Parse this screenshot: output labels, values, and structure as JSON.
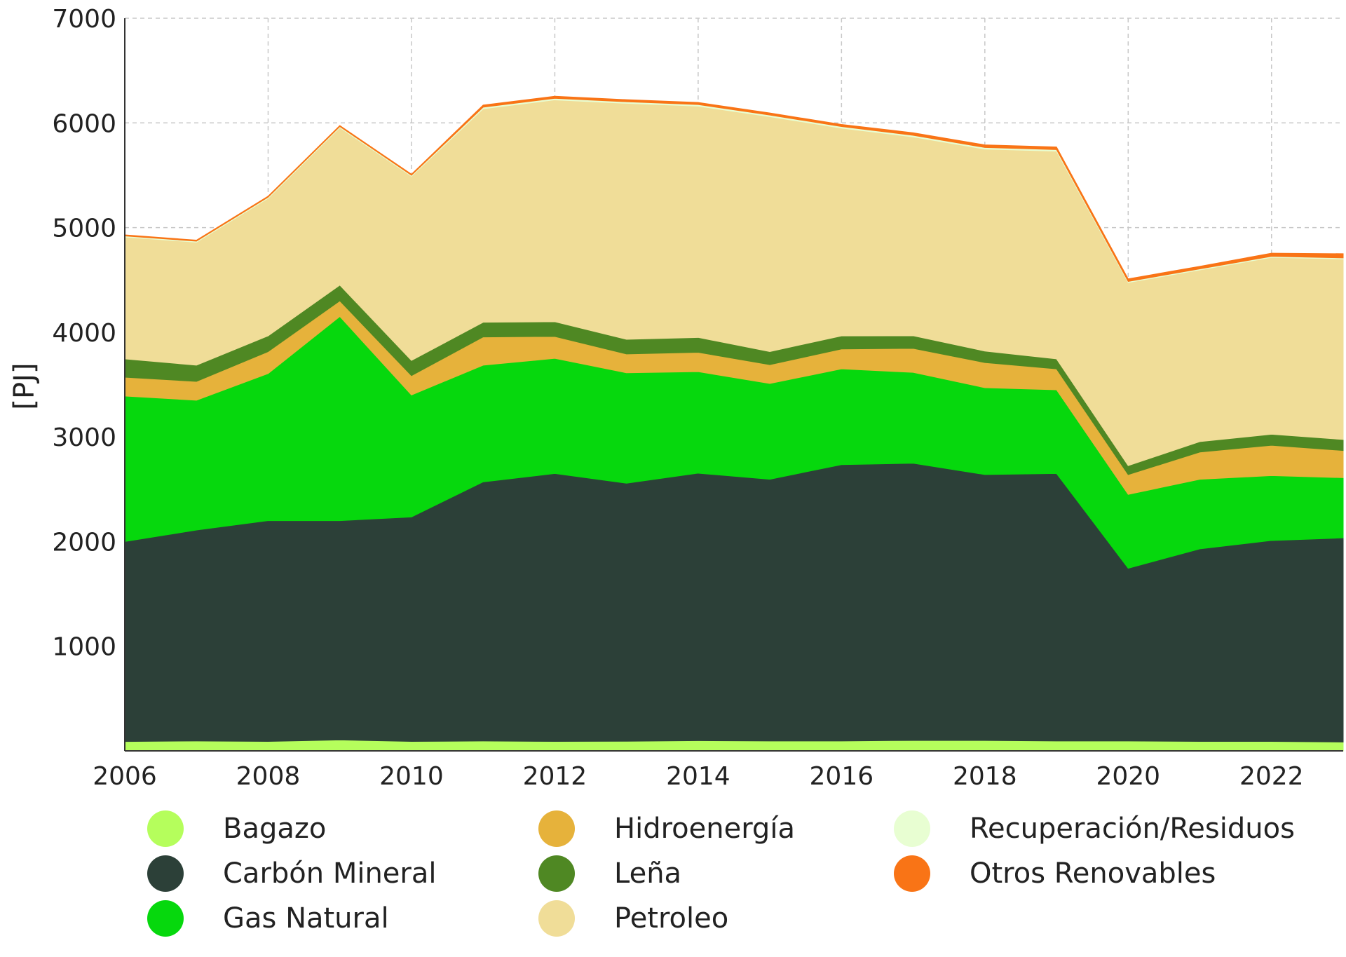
{
  "chart_data": {
    "type": "area",
    "stacked": true,
    "title": "",
    "xlabel": "",
    "ylabel": "[PJ]",
    "x": [
      2006,
      2007,
      2008,
      2009,
      2010,
      2011,
      2012,
      2013,
      2014,
      2015,
      2016,
      2017,
      2018,
      2019,
      2020,
      2021,
      2022,
      2023
    ],
    "xlim": [
      2006,
      2023
    ],
    "ylim": [
      0,
      7000
    ],
    "xticks": [
      "2006",
      "2008",
      "2010",
      "2012",
      "2014",
      "2016",
      "2018",
      "2020",
      "2022"
    ],
    "yticks": [
      "1000",
      "2000",
      "3000",
      "4000",
      "5000",
      "6000",
      "7000"
    ],
    "grid": true,
    "legend_position": "bottom",
    "series": [
      {
        "name": "Bagazo",
        "color": "#b5fe5c",
        "values": [
          90,
          95,
          90,
          105,
          90,
          95,
          90,
          92,
          98,
          95,
          95,
          100,
          100,
          95,
          95,
          90,
          90,
          85
        ]
      },
      {
        "name": "Carbón Mineral",
        "color": "#2c4038",
        "values": [
          1910,
          2015,
          2110,
          2095,
          2145,
          2475,
          2560,
          2465,
          2555,
          2500,
          2640,
          2648,
          2540,
          2555,
          1650,
          1840,
          1920,
          1950
        ]
      },
      {
        "name": "Gas Natural",
        "color": "#06d80d",
        "values": [
          1390,
          1240,
          1405,
          1950,
          1165,
          1115,
          1100,
          1055,
          970,
          915,
          915,
          868,
          830,
          800,
          705,
          665,
          620,
          575
        ]
      },
      {
        "name": "Hidroenergía",
        "color": "#e6b23b",
        "values": [
          180,
          180,
          210,
          150,
          185,
          270,
          210,
          180,
          185,
          180,
          190,
          230,
          240,
          200,
          190,
          260,
          290,
          260
        ]
      },
      {
        "name": "Leña",
        "color": "#4f8823",
        "values": [
          175,
          155,
          150,
          150,
          145,
          140,
          140,
          140,
          142,
          125,
          125,
          120,
          110,
          95,
          85,
          100,
          105,
          105
        ]
      },
      {
        "name": "Petroleo",
        "color": "#f0dd98",
        "values": [
          1165,
          1175,
          1315,
          1505,
          1760,
          2040,
          2120,
          2255,
          2210,
          2245,
          1985,
          1900,
          1930,
          1985,
          1750,
          1640,
          1690,
          1725
        ]
      },
      {
        "name": "Recuperación/Residuos",
        "color": "#e8fed2",
        "values": [
          10,
          10,
          10,
          10,
          10,
          15,
          15,
          15,
          15,
          15,
          15,
          15,
          15,
          15,
          10,
          10,
          10,
          10
        ]
      },
      {
        "name": "Otros Renovables",
        "color": "#f97416",
        "values": [
          10,
          10,
          10,
          10,
          10,
          20,
          20,
          20,
          20,
          20,
          20,
          25,
          25,
          25,
          25,
          25,
          30,
          40
        ]
      }
    ]
  }
}
